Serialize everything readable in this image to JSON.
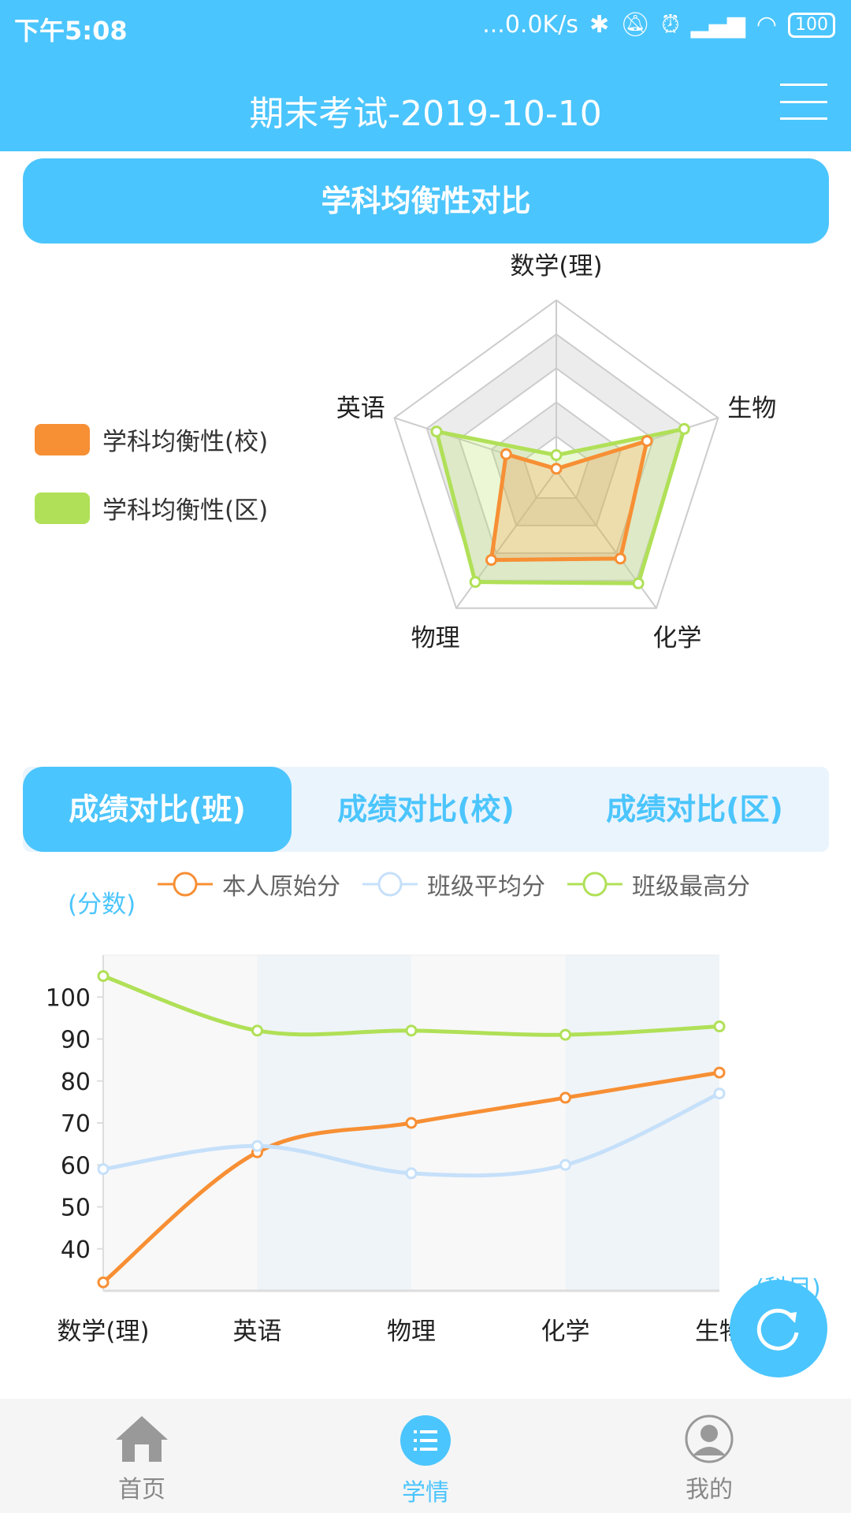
{
  "status": {
    "time": "下午5:08",
    "speed": "...0.0K/s",
    "battery": "100"
  },
  "header": {
    "title": "期末考试-2019-10-10"
  },
  "radar": {
    "title": "学科均衡性对比",
    "indicators": [
      "数学(理)",
      "生物",
      "化学",
      "物理",
      "英语"
    ],
    "series": [
      {
        "name": "学科均衡性(校)",
        "color": "#f78f34",
        "values": [
          0.01,
          0.56,
          0.64,
          0.65,
          0.31
        ]
      },
      {
        "name": "学科均衡性(区)",
        "color": "#b0e057",
        "values": [
          0.09,
          0.79,
          0.82,
          0.81,
          0.74
        ]
      }
    ]
  },
  "tabs": [
    {
      "label": "成绩对比(班)",
      "active": true
    },
    {
      "label": "成绩对比(校)"
    },
    {
      "label": "成绩对比(区)"
    }
  ],
  "chart_data": {
    "type": "line",
    "ylabel": "(分数)",
    "xlabel": "(科目)",
    "categories": [
      "数学(理)",
      "英语",
      "物理",
      "化学",
      "生物"
    ],
    "yticks": [
      40,
      50,
      60,
      70,
      80,
      90,
      100
    ],
    "ylim": [
      30,
      110
    ],
    "series": [
      {
        "name": "本人原始分",
        "color": "#f78f34",
        "values": [
          32,
          63,
          70,
          76,
          82
        ]
      },
      {
        "name": "班级平均分",
        "color": "#c6e0fa",
        "values": [
          59,
          64.5,
          58,
          60,
          77
        ]
      },
      {
        "name": "班级最高分",
        "color": "#b0e057",
        "values": [
          105,
          92,
          92,
          91,
          93
        ]
      }
    ],
    "legend": "top",
    "smooth": true
  },
  "nav": [
    {
      "label": "首页",
      "icon": "home-icon"
    },
    {
      "label": "学情",
      "icon": "list-icon",
      "active": true
    },
    {
      "label": "我的",
      "icon": "user-icon"
    }
  ],
  "accent": "#4bc5fd"
}
